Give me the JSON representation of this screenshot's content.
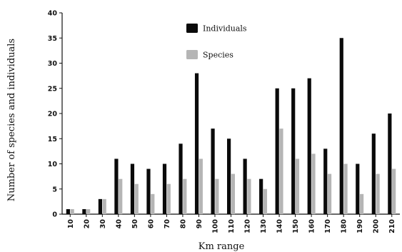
{
  "chart_data": {
    "type": "bar",
    "categories": [
      "10",
      "20",
      "30",
      "40",
      "50",
      "60",
      "70",
      "80",
      "90",
      "100",
      "110",
      "120",
      "130",
      "140",
      "150",
      "160",
      "170",
      "180",
      "190",
      "200",
      "210"
    ],
    "series": [
      {
        "name": "Individuals",
        "values": [
          1,
          1,
          3,
          11,
          10,
          9,
          10,
          14,
          28,
          17,
          15,
          11,
          7,
          25,
          25,
          27,
          13,
          35,
          10,
          16,
          20
        ]
      },
      {
        "name": "Species",
        "values": [
          1,
          1,
          3,
          7,
          6,
          4,
          6,
          7,
          11,
          7,
          8,
          7,
          5,
          17,
          11,
          12,
          8,
          10,
          4,
          8,
          9
        ]
      }
    ],
    "xlabel": "Km range",
    "ylabel": "Number of species and individuals",
    "ylim": [
      0,
      40
    ],
    "yticks": [
      0,
      5,
      10,
      15,
      20,
      25,
      30,
      35,
      40
    ],
    "grid": false,
    "legend_position": "top-center",
    "colors": {
      "Individuals": "#0a0a0a",
      "Species": "#b5b5b5"
    }
  }
}
